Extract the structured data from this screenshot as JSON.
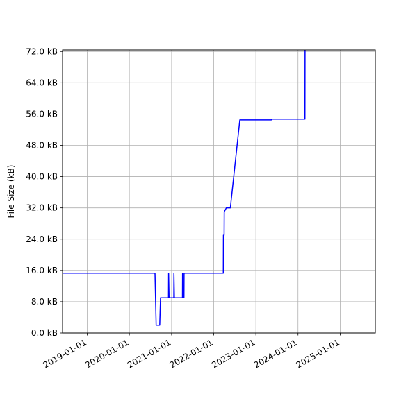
{
  "chart_data": {
    "type": "line",
    "title": "",
    "xlabel": "",
    "ylabel": "File Size (kB)",
    "xlim": [
      "2018-06-01",
      "2025-11-01"
    ],
    "ylim": [
      0,
      72.4
    ],
    "grid": true,
    "line_color": "#0000ff",
    "xticks": [
      "2019-01-01",
      "2020-01-01",
      "2021-01-01",
      "2022-01-01",
      "2023-01-01",
      "2024-01-01",
      "2025-01-01"
    ],
    "yticks": [
      {
        "value": 0,
        "label": "0.0 kB"
      },
      {
        "value": 8,
        "label": "8.0 kB"
      },
      {
        "value": 16,
        "label": "16.0 kB"
      },
      {
        "value": 24,
        "label": "24.0 kB"
      },
      {
        "value": 32,
        "label": "32.0 kB"
      },
      {
        "value": 40,
        "label": "40.0 kB"
      },
      {
        "value": 48,
        "label": "48.0 kB"
      },
      {
        "value": 56,
        "label": "56.0 kB"
      },
      {
        "value": 64,
        "label": "64.0 kB"
      },
      {
        "value": 72,
        "label": "72.0 kB"
      }
    ],
    "series": [
      {
        "points": [
          {
            "x": "2018-06-01",
            "y": 15.3
          },
          {
            "x": "2020-08-10",
            "y": 15.3
          },
          {
            "x": "2020-08-20",
            "y": 2.0
          },
          {
            "x": "2020-09-20",
            "y": 2.0
          },
          {
            "x": "2020-09-27",
            "y": 9.0
          },
          {
            "x": "2020-12-05",
            "y": 9.0
          },
          {
            "x": "2020-12-06",
            "y": 15.3
          },
          {
            "x": "2020-12-10",
            "y": 9.0
          },
          {
            "x": "2021-01-20",
            "y": 9.0
          },
          {
            "x": "2021-01-21",
            "y": 15.3
          },
          {
            "x": "2021-01-25",
            "y": 9.0
          },
          {
            "x": "2021-04-05",
            "y": 9.0
          },
          {
            "x": "2021-04-06",
            "y": 15.3
          },
          {
            "x": "2021-04-10",
            "y": 9.0
          },
          {
            "x": "2021-04-18",
            "y": 9.0
          },
          {
            "x": "2021-04-19",
            "y": 15.3
          },
          {
            "x": "2022-03-25",
            "y": 15.3
          },
          {
            "x": "2022-03-26",
            "y": 25.0
          },
          {
            "x": "2022-04-01",
            "y": 25.0
          },
          {
            "x": "2022-04-02",
            "y": 31.0
          },
          {
            "x": "2022-04-20",
            "y": 32.0
          },
          {
            "x": "2022-05-25",
            "y": 32.0
          },
          {
            "x": "2022-08-15",
            "y": 54.5
          },
          {
            "x": "2023-05-15",
            "y": 54.5
          },
          {
            "x": "2023-05-16",
            "y": 54.7
          },
          {
            "x": "2024-03-01",
            "y": 54.7
          },
          {
            "x": "2024-03-02",
            "y": 72.4
          }
        ]
      }
    ]
  }
}
